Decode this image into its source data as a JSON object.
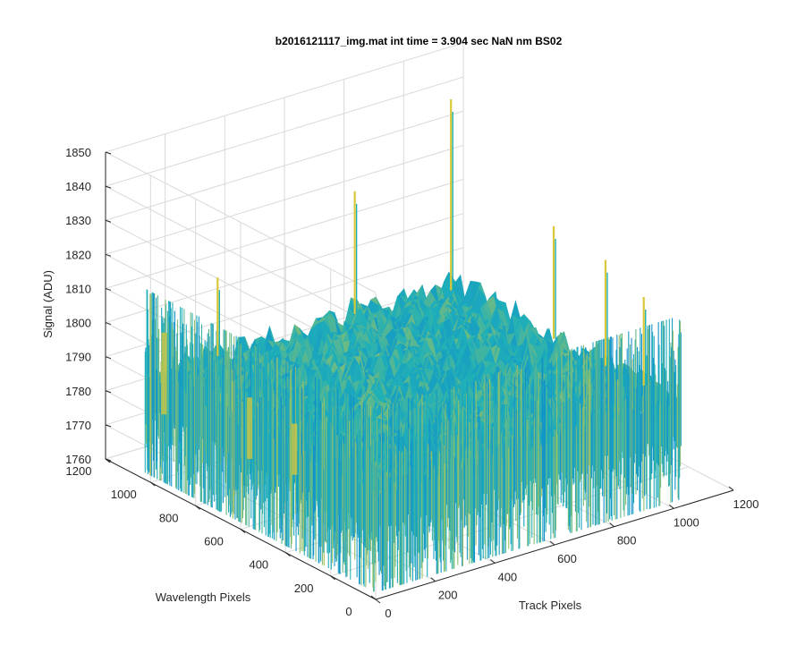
{
  "chart_data": {
    "type": "surface",
    "title": "b2016121117_img.mat int time = 3.904 sec  NaN nm BS02",
    "xlabel": "Track Pixels",
    "ylabel": "Wavelength Pixels",
    "zlabel": "Signal (ADU)",
    "xlim": [
      0,
      1200
    ],
    "ylim": [
      0,
      1200
    ],
    "zlim": [
      1760,
      1850
    ],
    "x_ticks": [
      "0",
      "200",
      "400",
      "600",
      "800",
      "1000",
      "1200"
    ],
    "y_ticks": [
      "0",
      "200",
      "400",
      "600",
      "800",
      "1000",
      "1200"
    ],
    "z_ticks": [
      "1760",
      "1770",
      "1780",
      "1790",
      "1800",
      "1810",
      "1820",
      "1830",
      "1840",
      "1850"
    ],
    "data_extent": {
      "x": [
        0,
        1024
      ],
      "y": [
        0,
        1024
      ]
    },
    "baseline_signal": 1790,
    "noise_range": [
      1768,
      1812
    ],
    "peaks": [
      {
        "x": 1000,
        "y": 990,
        "z": 1846
      },
      {
        "x": 700,
        "y": 1020,
        "z": 1826
      },
      {
        "x": 240,
        "y": 1020,
        "z": 1813
      },
      {
        "x": 1020,
        "y": 560,
        "z": 1823
      },
      {
        "x": 1020,
        "y": 330,
        "z": 1821
      },
      {
        "x": 1020,
        "y": 160,
        "z": 1816
      }
    ],
    "streaks": [
      {
        "x": 0,
        "y": 940,
        "z": 1806
      },
      {
        "x": 0,
        "y": 560,
        "z": 1800
      },
      {
        "x": 30,
        "y": 400,
        "z": 1797
      }
    ],
    "grid": true,
    "colormap": "parula",
    "colors": {
      "low": "#0b7fd4",
      "mid": "#1fb0b8",
      "high": "#d9c83a",
      "grid": "#d9d9d9",
      "axis": "#262626"
    }
  }
}
